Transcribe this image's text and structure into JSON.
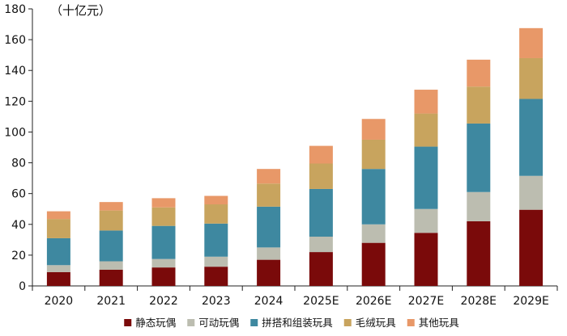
{
  "chart_data": {
    "type": "bar",
    "stacked": true,
    "unit_label": "（十亿元）",
    "categories": [
      "2020",
      "2021",
      "2022",
      "2023",
      "2024",
      "2025E",
      "2026E",
      "2027E",
      "2028E",
      "2029E"
    ],
    "ylim": [
      0,
      180
    ],
    "yticks": [
      0,
      20,
      40,
      60,
      80,
      100,
      120,
      140,
      160,
      180
    ],
    "grid": false,
    "legend_position": "bottom",
    "series": [
      {
        "name": "静态玩偶",
        "color": "#7a0a0a",
        "values": [
          9,
          10.5,
          12,
          12.5,
          17,
          22,
          28,
          34.5,
          42,
          49.5
        ]
      },
      {
        "name": "可动玩偶",
        "color": "#bcbdb0",
        "values": [
          4.5,
          5.5,
          5.5,
          6.5,
          8,
          10,
          12,
          15.5,
          19,
          22
        ]
      },
      {
        "name": "拼搭和组装玩具",
        "color": "#3e88a0",
        "values": [
          17.5,
          20,
          21.5,
          21.5,
          26.5,
          31,
          36,
          40.5,
          44.5,
          50
        ]
      },
      {
        "name": "毛绒玩具",
        "color": "#c8a45e",
        "values": [
          12.5,
          13,
          12,
          12.5,
          15,
          16.5,
          19,
          21.5,
          24,
          26.5
        ]
      },
      {
        "name": "其他玩具",
        "color": "#e89868",
        "values": [
          5,
          5.5,
          6,
          5.5,
          9.5,
          11.5,
          13.5,
          15.5,
          17.5,
          19.5
        ]
      }
    ]
  }
}
